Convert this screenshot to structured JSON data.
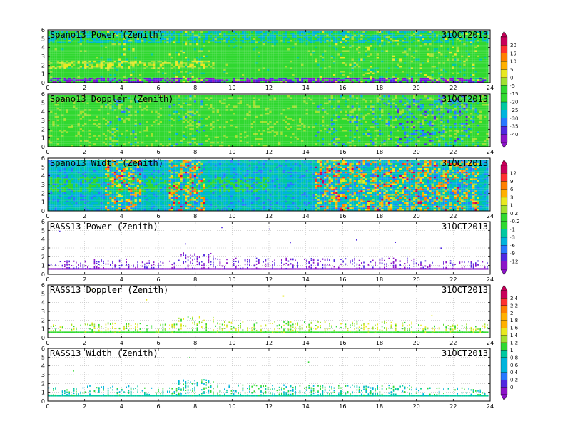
{
  "chart_data": [
    {
      "type": "heatmap",
      "title": "Spano13 Power (Zenith)",
      "date": "31OCT2013",
      "ylim": [
        0,
        6
      ],
      "xlim": [
        0,
        24
      ],
      "colorbar": "cb1"
    },
    {
      "type": "heatmap",
      "title": "Spano13 Doppler (Zenith)",
      "date": "31OCT2013",
      "ylim": [
        0,
        6
      ],
      "xlim": [
        0,
        24
      ],
      "colorbar": "cb1"
    },
    {
      "type": "heatmap",
      "title": "Spano13 Width (Zenith)",
      "date": "31OCT2013",
      "ylim": [
        0,
        6
      ],
      "xlim": [
        0,
        24
      ],
      "colorbar": "cb2"
    },
    {
      "type": "heatmap",
      "title": "RASS13 Power (Zenith)",
      "date": "31OCT2013",
      "ylim": [
        0,
        6
      ],
      "xlim": [
        0,
        24
      ],
      "colorbar": "cb2"
    },
    {
      "type": "heatmap",
      "title": "RASS13 Doppler (Zenith)",
      "date": "31OCT2013",
      "ylim": [
        0,
        6
      ],
      "xlim": [
        0,
        24
      ],
      "colorbar": "cb3"
    },
    {
      "type": "heatmap",
      "title": "RASS13 Width (Zenith)",
      "date": "31OCT2013",
      "ylim": [
        0,
        6
      ],
      "xlim": [
        0,
        24
      ],
      "colorbar": "cb3"
    }
  ],
  "axes": {
    "x_ticks": [
      "0",
      "2",
      "4",
      "6",
      "8",
      "10",
      "12",
      "14",
      "16",
      "18",
      "20",
      "22",
      "24"
    ],
    "y_ticks": [
      "0",
      "1",
      "2",
      "3",
      "4",
      "5",
      "6"
    ]
  },
  "colorbars": {
    "cb1": {
      "labels": [
        "20",
        "15",
        "10",
        "5",
        "0",
        "-5",
        "-15",
        "-20",
        "-25",
        "-30",
        "-35",
        "-40"
      ]
    },
    "cb2": {
      "labels": [
        "12",
        "9",
        "6",
        "3",
        "1",
        "0.2",
        "-0.2",
        "-1",
        "-3",
        "-6",
        "-9",
        "-12"
      ]
    },
    "cb3": {
      "labels": [
        "2.4",
        "2.2",
        "2",
        "1.8",
        "1.6",
        "1.4",
        "1.2",
        "1",
        "0.8",
        "0.6",
        "0.4",
        "0.2",
        "0"
      ]
    }
  },
  "palette": [
    "#c8005a",
    "#ff3030",
    "#ff7f00",
    "#ffb000",
    "#e8e820",
    "#a0e030",
    "#30d830",
    "#00c8a0",
    "#00b4dc",
    "#2878ff",
    "#5028e0",
    "#8c14c8"
  ]
}
